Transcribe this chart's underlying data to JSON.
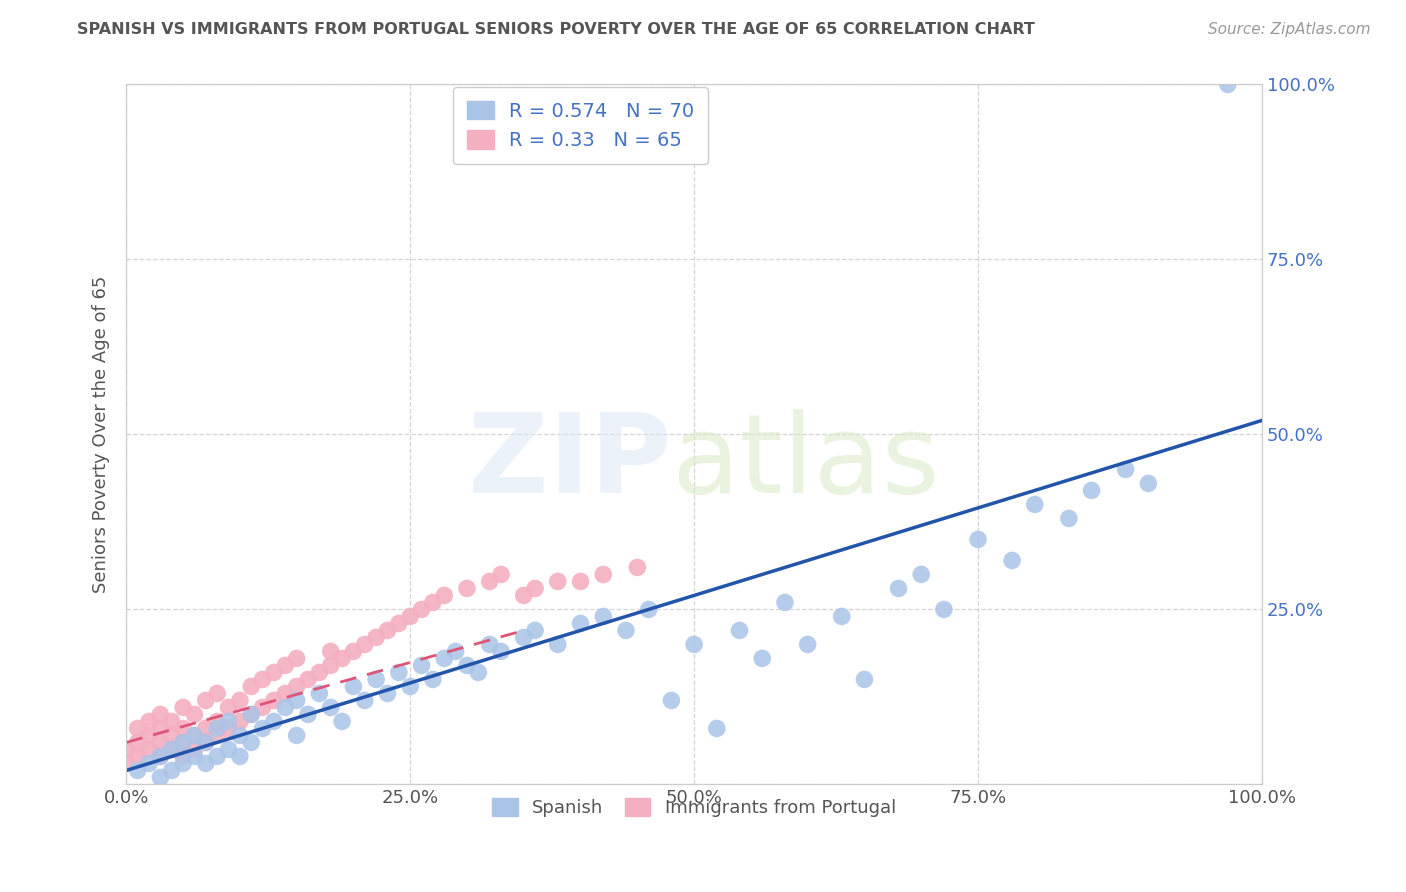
{
  "title": "SPANISH VS IMMIGRANTS FROM PORTUGAL SENIORS POVERTY OVER THE AGE OF 65 CORRELATION CHART",
  "source": "Source: ZipAtlas.com",
  "ylabel": "Seniors Poverty Over the Age of 65",
  "xlim": [
    0,
    1.0
  ],
  "ylim": [
    0,
    1.0
  ],
  "xticks": [
    0.0,
    0.25,
    0.5,
    0.75,
    1.0
  ],
  "yticks": [
    0.0,
    0.25,
    0.5,
    0.75,
    1.0
  ],
  "xticklabels": [
    "0.0%",
    "25.0%",
    "50.0%",
    "75.0%",
    "100.0%"
  ],
  "yticklabels": [
    "",
    "25.0%",
    "50.0%",
    "75.0%",
    "100.0%"
  ],
  "series1_name": "Spanish",
  "series1_color": "#aac4e8",
  "series1_line_color": "#2255aa",
  "series1_R": 0.574,
  "series1_N": 70,
  "series2_name": "Immigrants from Portugal",
  "series2_color": "#f4b0c0",
  "series2_line_color": "#dd5577",
  "series2_R": 0.33,
  "series2_N": 65,
  "background_color": "#ffffff",
  "grid_color": "#cccccc",
  "title_color": "#555555",
  "spanish_x": [
    0.01,
    0.02,
    0.03,
    0.03,
    0.04,
    0.04,
    0.05,
    0.05,
    0.06,
    0.06,
    0.07,
    0.07,
    0.08,
    0.08,
    0.09,
    0.09,
    0.1,
    0.1,
    0.11,
    0.11,
    0.12,
    0.13,
    0.14,
    0.15,
    0.15,
    0.16,
    0.17,
    0.18,
    0.19,
    0.2,
    0.21,
    0.22,
    0.23,
    0.24,
    0.25,
    0.26,
    0.27,
    0.28,
    0.29,
    0.3,
    0.31,
    0.32,
    0.33,
    0.35,
    0.36,
    0.38,
    0.4,
    0.42,
    0.44,
    0.46,
    0.48,
    0.5,
    0.52,
    0.54,
    0.56,
    0.58,
    0.6,
    0.63,
    0.65,
    0.68,
    0.7,
    0.72,
    0.75,
    0.78,
    0.8,
    0.83,
    0.85,
    0.88,
    0.9,
    0.97
  ],
  "spanish_y": [
    0.02,
    0.03,
    0.01,
    0.04,
    0.02,
    0.05,
    0.03,
    0.06,
    0.04,
    0.07,
    0.03,
    0.06,
    0.04,
    0.08,
    0.05,
    0.09,
    0.04,
    0.07,
    0.06,
    0.1,
    0.08,
    0.09,
    0.11,
    0.07,
    0.12,
    0.1,
    0.13,
    0.11,
    0.09,
    0.14,
    0.12,
    0.15,
    0.13,
    0.16,
    0.14,
    0.17,
    0.15,
    0.18,
    0.19,
    0.17,
    0.16,
    0.2,
    0.19,
    0.21,
    0.22,
    0.2,
    0.23,
    0.24,
    0.22,
    0.25,
    0.12,
    0.2,
    0.08,
    0.22,
    0.18,
    0.26,
    0.2,
    0.24,
    0.15,
    0.28,
    0.3,
    0.25,
    0.35,
    0.32,
    0.4,
    0.38,
    0.42,
    0.45,
    0.43,
    1.0
  ],
  "portugal_x": [
    0.0,
    0.0,
    0.01,
    0.01,
    0.01,
    0.02,
    0.02,
    0.02,
    0.03,
    0.03,
    0.03,
    0.03,
    0.04,
    0.04,
    0.04,
    0.05,
    0.05,
    0.05,
    0.05,
    0.06,
    0.06,
    0.06,
    0.07,
    0.07,
    0.07,
    0.08,
    0.08,
    0.08,
    0.09,
    0.09,
    0.1,
    0.1,
    0.11,
    0.11,
    0.12,
    0.12,
    0.13,
    0.13,
    0.14,
    0.14,
    0.15,
    0.15,
    0.16,
    0.17,
    0.18,
    0.18,
    0.19,
    0.2,
    0.21,
    0.22,
    0.23,
    0.24,
    0.25,
    0.26,
    0.27,
    0.28,
    0.3,
    0.32,
    0.33,
    0.35,
    0.36,
    0.38,
    0.4,
    0.42,
    0.45
  ],
  "portugal_y": [
    0.03,
    0.05,
    0.04,
    0.06,
    0.08,
    0.05,
    0.07,
    0.09,
    0.04,
    0.06,
    0.08,
    0.1,
    0.05,
    0.07,
    0.09,
    0.04,
    0.06,
    0.08,
    0.11,
    0.05,
    0.07,
    0.1,
    0.06,
    0.08,
    0.12,
    0.07,
    0.09,
    0.13,
    0.08,
    0.11,
    0.09,
    0.12,
    0.1,
    0.14,
    0.11,
    0.15,
    0.12,
    0.16,
    0.13,
    0.17,
    0.14,
    0.18,
    0.15,
    0.16,
    0.17,
    0.19,
    0.18,
    0.19,
    0.2,
    0.21,
    0.22,
    0.23,
    0.24,
    0.25,
    0.26,
    0.27,
    0.28,
    0.29,
    0.3,
    0.27,
    0.28,
    0.29,
    0.29,
    0.3,
    0.31
  ],
  "spanish_line_x": [
    0.0,
    1.0
  ],
  "spanish_line_y": [
    0.02,
    0.52
  ],
  "portugal_line_x": [
    0.0,
    0.35
  ],
  "portugal_line_y": [
    0.06,
    0.22
  ]
}
